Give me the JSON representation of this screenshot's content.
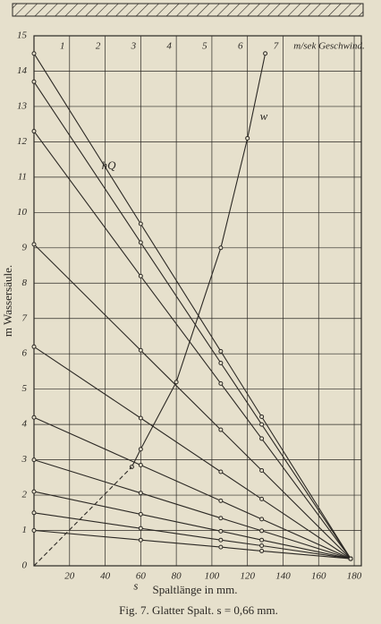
{
  "chart_data": {
    "type": "line",
    "title": "Fig. 7.   Glatter Spalt.   s = 0,66 mm.",
    "xlabel": "Spaltlänge in mm.",
    "ylabel": "m Wassersäule.",
    "x2label": "m/sek Geschwind.",
    "xlim": [
      0,
      184
    ],
    "ylim": [
      0,
      15
    ],
    "xticks": [
      20,
      40,
      60,
      80,
      100,
      120,
      140,
      160,
      180
    ],
    "yticks": [
      0,
      1,
      2,
      3,
      4,
      5,
      6,
      7,
      8,
      9,
      10,
      11,
      12,
      13,
      14,
      15
    ],
    "x2lim": [
      0,
      9
    ],
    "x2ticks": [
      1,
      2,
      3,
      4,
      5,
      6,
      7
    ],
    "grid": true,
    "color": "#2b2824",
    "series": [
      {
        "x": [
          0,
          60,
          105,
          128,
          178
        ],
        "values": [
          14.5,
          9.68,
          6.07,
          4.22,
          0.2
        ]
      },
      {
        "x": [
          0,
          60,
          105,
          128,
          178
        ],
        "values": [
          13.7,
          9.15,
          5.74,
          4.0,
          0.2
        ]
      },
      {
        "x": [
          0,
          60,
          105,
          128,
          178
        ],
        "values": [
          12.3,
          8.2,
          5.16,
          3.6,
          0.2
        ]
      },
      {
        "x": [
          0,
          60,
          105,
          128,
          178
        ],
        "values": [
          9.1,
          6.1,
          3.85,
          2.7,
          0.2
        ]
      },
      {
        "x": [
          0,
          60,
          105,
          128,
          178
        ],
        "values": [
          6.2,
          4.18,
          2.66,
          1.89,
          0.2
        ]
      },
      {
        "x": [
          0,
          60,
          105,
          128,
          178
        ],
        "values": [
          4.2,
          2.85,
          1.84,
          1.32,
          0.2
        ]
      },
      {
        "x": [
          0,
          60,
          105,
          128,
          178
        ],
        "values": [
          3.0,
          2.06,
          1.35,
          0.99,
          0.2
        ]
      },
      {
        "x": [
          0,
          60,
          105,
          128,
          178
        ],
        "values": [
          2.1,
          1.46,
          0.98,
          0.73,
          0.2
        ]
      },
      {
        "x": [
          0,
          60,
          105,
          128,
          178
        ],
        "values": [
          1.5,
          1.06,
          0.73,
          0.57,
          0.2
        ]
      },
      {
        "x": [
          0,
          60,
          105,
          128,
          178
        ],
        "values": [
          1.0,
          0.73,
          0.53,
          0.42,
          0.2
        ]
      },
      {
        "x": [
          55,
          60,
          80,
          105,
          120,
          130
        ],
        "values": [
          2.8,
          3.3,
          5.2,
          9.0,
          12.1,
          14.5
        ]
      },
      {
        "x": [
          0,
          55
        ],
        "values": [
          0,
          2.8
        ],
        "dashed": true
      }
    ],
    "annotations": [
      {
        "text": "hQ",
        "x": 38,
        "y": 11.3
      },
      {
        "text": "w",
        "x": 127,
        "y": 12.7
      },
      {
        "text": "s",
        "x": 56,
        "y": -0.6
      }
    ]
  }
}
